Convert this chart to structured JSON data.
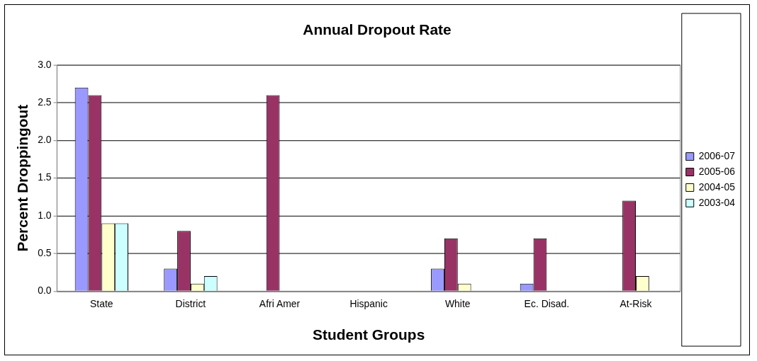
{
  "chart_data": {
    "type": "bar",
    "title": "Annual Dropout Rate",
    "xlabel": "Student Groups",
    "ylabel": "Percent Droppingout",
    "categories": [
      "State",
      "District",
      "Afri Amer",
      "Hispanic",
      "White",
      "Ec. Disad.",
      "At-Risk"
    ],
    "series": [
      {
        "name": "2006-07",
        "color": "#9999ff",
        "values": [
          2.7,
          0.3,
          0,
          0,
          0.3,
          0.1,
          0
        ]
      },
      {
        "name": "2005-06",
        "color": "#993366",
        "values": [
          2.6,
          0.8,
          2.6,
          0,
          0.7,
          0.7,
          1.2
        ]
      },
      {
        "name": "2004-05",
        "color": "#ffffcc",
        "values": [
          0.9,
          0.1,
          0,
          0,
          0.1,
          0,
          0.2
        ]
      },
      {
        "name": "2003-04",
        "color": "#ccffff",
        "values": [
          0.9,
          0.2,
          0,
          0,
          0,
          0,
          0
        ]
      }
    ],
    "ylim": [
      0,
      3
    ],
    "yticks": [
      {
        "value": 0,
        "label": "0.0"
      },
      {
        "value": 0.5,
        "label": "0.5"
      },
      {
        "value": 1,
        "label": "1.0"
      },
      {
        "value": 1.5,
        "label": "1.5"
      },
      {
        "value": 2,
        "label": "2.0"
      },
      {
        "value": 2.5,
        "label": "2.5"
      },
      {
        "value": 3,
        "label": "3.0"
      }
    ],
    "grid": "y",
    "legend": "right"
  }
}
